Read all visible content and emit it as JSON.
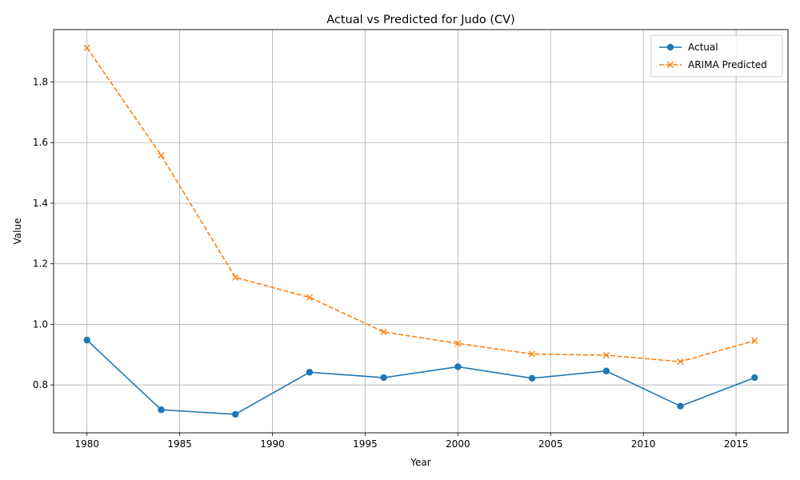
{
  "chart_data": {
    "type": "line",
    "title": "Actual vs Predicted for Judo (CV)",
    "xlabel": "Year",
    "ylabel": "Value",
    "x": [
      1980,
      1984,
      1988,
      1992,
      1996,
      2000,
      2004,
      2008,
      2012,
      2016
    ],
    "xlim": [
      1978.2,
      2017.8
    ],
    "ylim": [
      0.642,
      1.973
    ],
    "xticks": [
      1980,
      1985,
      1990,
      1995,
      2000,
      2005,
      2010,
      2015
    ],
    "yticks": [
      0.8,
      1.0,
      1.2,
      1.4,
      1.6,
      1.8
    ],
    "ytick_labels": [
      "0.8",
      "1.0",
      "1.2",
      "1.4",
      "1.6",
      "1.8"
    ],
    "grid": true,
    "legend_position": "top-right",
    "series": [
      {
        "name": "Actual",
        "color": "#1f77b4",
        "line_style": "solid",
        "marker": "circle",
        "values": [
          0.948,
          0.718,
          0.703,
          0.842,
          0.824,
          0.86,
          0.822,
          0.846,
          0.73,
          0.824
        ]
      },
      {
        "name": "ARIMA Predicted",
        "color": "#ff7f0e",
        "line_style": "dashed",
        "marker": "x",
        "values": [
          1.913,
          1.558,
          1.155,
          1.089,
          0.975,
          0.937,
          0.902,
          0.898,
          0.877,
          0.946
        ]
      }
    ]
  }
}
